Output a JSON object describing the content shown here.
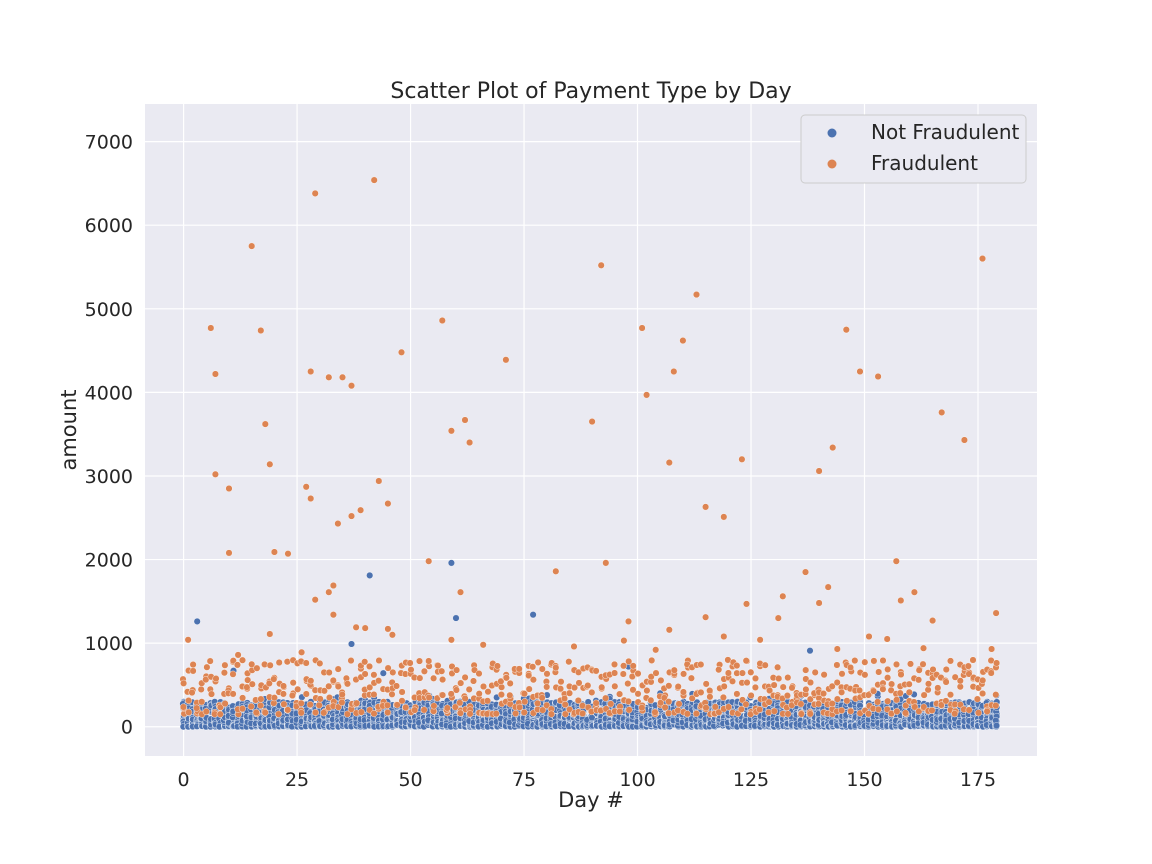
{
  "chart_data": {
    "type": "scatter",
    "title": "Scatter Plot of Payment Type by Day",
    "xlabel": "Day #",
    "ylabel": "amount",
    "xlim": [
      -8.5,
      188
    ],
    "ylim": [
      -350,
      7450
    ],
    "xticks": [
      0,
      25,
      50,
      75,
      100,
      125,
      150,
      175
    ],
    "yticks": [
      0,
      1000,
      2000,
      3000,
      4000,
      5000,
      6000,
      7000
    ],
    "grid": true,
    "legend_position": "top-right",
    "colors": {
      "background": "#eaeaf2",
      "grid": "#ffffff",
      "not_fraudulent": "#4c72b0",
      "fraudulent": "#dd8452"
    },
    "series": [
      {
        "name": "Not Fraudulent",
        "color": "#4c72b0",
        "points": [
          [
            3,
            1260
          ],
          [
            41,
            1810
          ],
          [
            59,
            1960
          ],
          [
            60,
            1300
          ],
          [
            77,
            1340
          ],
          [
            138,
            910
          ],
          [
            37,
            990
          ],
          [
            98,
            720
          ],
          [
            44,
            640
          ],
          [
            11,
            670
          ]
        ],
        "bulk": {
          "x_range": [
            0,
            179
          ],
          "typical_max": 300,
          "points_per_day": 22
        }
      },
      {
        "name": "Fraudulent",
        "color": "#dd8452",
        "points": [
          [
            0,
            520
          ],
          [
            1,
            1040
          ],
          [
            6,
            4770
          ],
          [
            7,
            4220
          ],
          [
            7,
            3020
          ],
          [
            10,
            2850
          ],
          [
            10,
            2080
          ],
          [
            15,
            5750
          ],
          [
            17,
            4740
          ],
          [
            18,
            3620
          ],
          [
            19,
            3140
          ],
          [
            19,
            1110
          ],
          [
            20,
            2090
          ],
          [
            23,
            2070
          ],
          [
            27,
            2870
          ],
          [
            28,
            4250
          ],
          [
            28,
            2730
          ],
          [
            29,
            6380
          ],
          [
            29,
            1520
          ],
          [
            32,
            4180
          ],
          [
            32,
            1610
          ],
          [
            33,
            1690
          ],
          [
            33,
            1340
          ],
          [
            34,
            2430
          ],
          [
            35,
            4180
          ],
          [
            37,
            4080
          ],
          [
            37,
            2520
          ],
          [
            38,
            1190
          ],
          [
            39,
            2590
          ],
          [
            40,
            1180
          ],
          [
            42,
            6540
          ],
          [
            43,
            2940
          ],
          [
            45,
            2670
          ],
          [
            45,
            1170
          ],
          [
            48,
            4480
          ],
          [
            54,
            1980
          ],
          [
            57,
            4860
          ],
          [
            59,
            3540
          ],
          [
            59,
            1040
          ],
          [
            61,
            1610
          ],
          [
            62,
            3670
          ],
          [
            63,
            3400
          ],
          [
            71,
            4390
          ],
          [
            82,
            1860
          ],
          [
            90,
            3650
          ],
          [
            92,
            5520
          ],
          [
            93,
            1960
          ],
          [
            97,
            1030
          ],
          [
            98,
            1260
          ],
          [
            101,
            4770
          ],
          [
            102,
            3970
          ],
          [
            107,
            3160
          ],
          [
            107,
            1160
          ],
          [
            108,
            4250
          ],
          [
            110,
            4620
          ],
          [
            113,
            5170
          ],
          [
            115,
            2630
          ],
          [
            115,
            1310
          ],
          [
            119,
            2510
          ],
          [
            119,
            1080
          ],
          [
            123,
            3200
          ],
          [
            124,
            1470
          ],
          [
            131,
            1300
          ],
          [
            132,
            1560
          ],
          [
            137,
            1850
          ],
          [
            140,
            3060
          ],
          [
            140,
            1480
          ],
          [
            142,
            1670
          ],
          [
            143,
            3340
          ],
          [
            146,
            4750
          ],
          [
            149,
            4250
          ],
          [
            151,
            1080
          ],
          [
            153,
            4190
          ],
          [
            155,
            1050
          ],
          [
            157,
            1980
          ],
          [
            158,
            1510
          ],
          [
            161,
            1610
          ],
          [
            165,
            1270
          ],
          [
            167,
            3760
          ],
          [
            172,
            3430
          ],
          [
            176,
            5600
          ],
          [
            179,
            1360
          ],
          [
            12,
            860
          ],
          [
            26,
            890
          ],
          [
            46,
            1100
          ],
          [
            66,
            980
          ],
          [
            86,
            960
          ],
          [
            104,
            920
          ],
          [
            127,
            1040
          ],
          [
            144,
            930
          ],
          [
            163,
            940
          ],
          [
            178,
            930
          ]
        ],
        "bulk": {
          "x_range": [
            0,
            179
          ],
          "typical_range": [
            150,
            800
          ],
          "points_per_day": 4
        }
      }
    ]
  }
}
